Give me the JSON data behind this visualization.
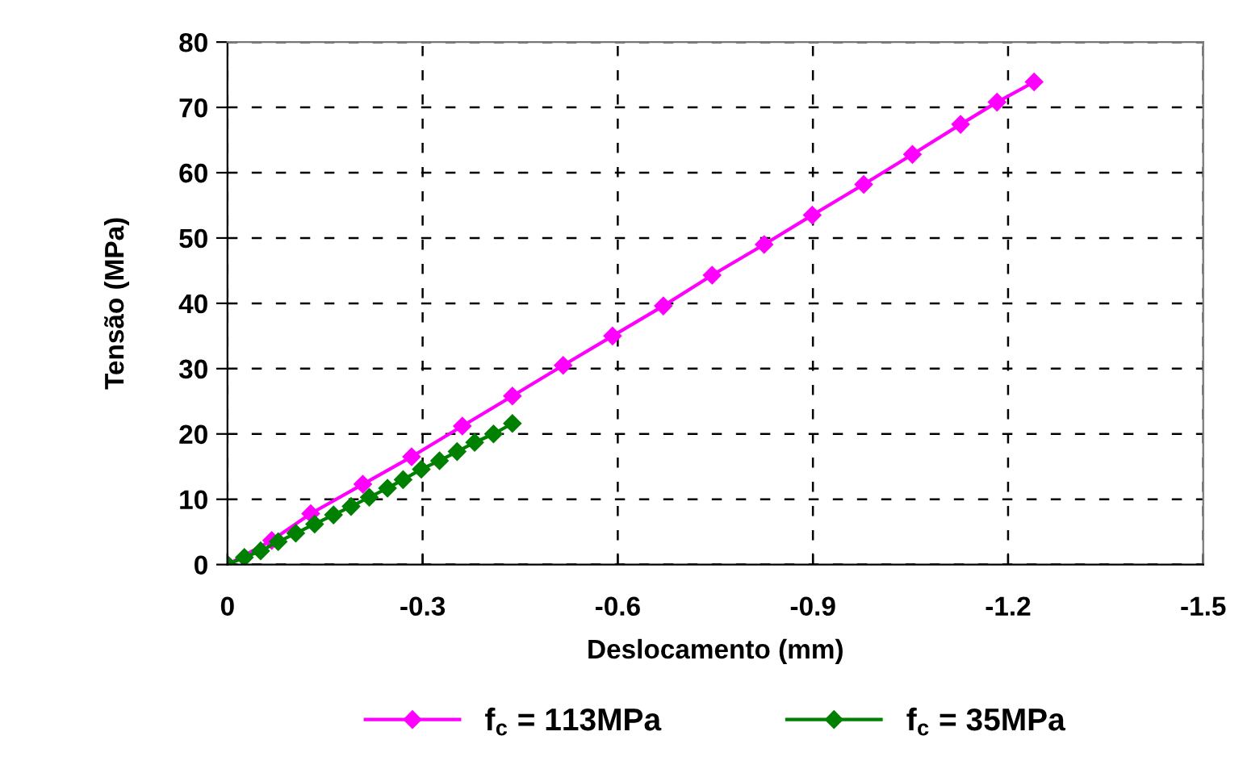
{
  "chart_data": {
    "type": "line",
    "xlabel": "Deslocamento (mm)",
    "ylabel": "Tensão (MPa)",
    "xlim": [
      0,
      -1.5
    ],
    "xticks": [
      0,
      -0.3,
      -0.6,
      -0.9,
      -1.2,
      -1.5
    ],
    "ylim": [
      0,
      80
    ],
    "yticks": [
      0,
      10,
      20,
      30,
      40,
      50,
      60,
      70,
      80
    ],
    "grid": true,
    "legend": "bottom",
    "marker": "diamond",
    "line_style": "solid",
    "series": [
      {
        "name": "f$_{c}$ = 113MPa",
        "color": "#ff00ff",
        "x": [
          0,
          -0.068,
          -0.128,
          -0.208,
          -0.283,
          -0.361,
          -0.438,
          -0.516,
          -0.592,
          -0.67,
          -0.745,
          -0.825,
          -0.899,
          -0.978,
          -1.053,
          -1.127,
          -1.183,
          -1.24
        ],
        "values": [
          0,
          3.7,
          7.8,
          12.3,
          16.5,
          21.2,
          25.8,
          30.5,
          35.0,
          39.6,
          44.3,
          49.0,
          53.5,
          58.2,
          62.8,
          67.4,
          70.8,
          73.9
        ]
      },
      {
        "name": "f$_{c}$ = 35MPa",
        "color": "#008000",
        "x": [
          0,
          -0.026,
          -0.051,
          -0.078,
          -0.105,
          -0.134,
          -0.163,
          -0.19,
          -0.218,
          -0.246,
          -0.27,
          -0.298,
          -0.326,
          -0.353,
          -0.38,
          -0.409,
          -0.438
        ],
        "values": [
          0,
          1.1,
          2.1,
          3.5,
          4.8,
          6.2,
          7.6,
          8.9,
          10.3,
          11.7,
          13.0,
          14.6,
          15.9,
          17.3,
          18.7,
          20.0,
          21.6
        ]
      }
    ]
  }
}
